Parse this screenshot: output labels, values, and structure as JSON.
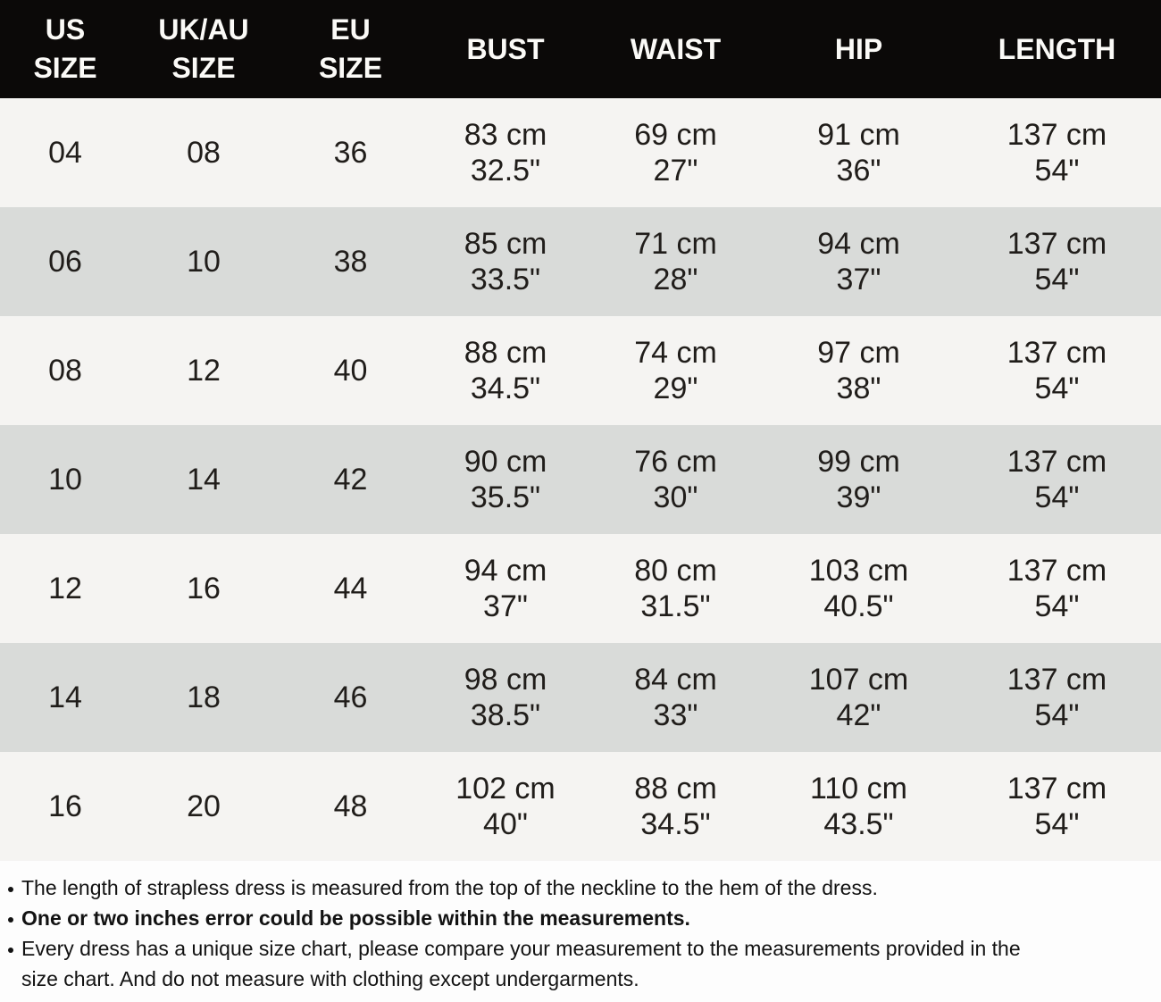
{
  "colors": {
    "header_bg": "#0b0908",
    "header_text": "#fbfaf7",
    "row_light": "#f5f4f2",
    "row_dark": "#d9dbd9",
    "table_text": "#201d1a",
    "notes_text": "#121212",
    "page_bg": "#fdfdfd"
  },
  "table": {
    "columns": [
      {
        "id": "us-size",
        "label_lines": [
          "US",
          "SIZE"
        ]
      },
      {
        "id": "uk-au-size",
        "label_lines": [
          "UK/AU",
          "SIZE"
        ]
      },
      {
        "id": "eu-size",
        "label_lines": [
          "EU",
          "SIZE"
        ]
      },
      {
        "id": "bust",
        "label_lines": [
          "BUST"
        ]
      },
      {
        "id": "waist",
        "label_lines": [
          "WAIST"
        ]
      },
      {
        "id": "hip",
        "label_lines": [
          "HIP"
        ]
      },
      {
        "id": "length",
        "label_lines": [
          "LENGTH"
        ]
      }
    ],
    "rows": [
      [
        [
          "04"
        ],
        [
          "08"
        ],
        [
          "36"
        ],
        [
          "83 cm",
          "32.5\""
        ],
        [
          "69 cm",
          "27\""
        ],
        [
          "91 cm",
          "36\""
        ],
        [
          "137 cm",
          "54\""
        ]
      ],
      [
        [
          "06"
        ],
        [
          "10"
        ],
        [
          "38"
        ],
        [
          "85 cm",
          "33.5\""
        ],
        [
          "71 cm",
          "28\""
        ],
        [
          "94 cm",
          "37\""
        ],
        [
          "137 cm",
          "54\""
        ]
      ],
      [
        [
          "08"
        ],
        [
          "12"
        ],
        [
          "40"
        ],
        [
          "88 cm",
          "34.5\""
        ],
        [
          "74 cm",
          "29\""
        ],
        [
          "97 cm",
          "38\""
        ],
        [
          "137 cm",
          "54\""
        ]
      ],
      [
        [
          "10"
        ],
        [
          "14"
        ],
        [
          "42"
        ],
        [
          "90 cm",
          "35.5\""
        ],
        [
          "76 cm",
          "30\""
        ],
        [
          "99 cm",
          "39\""
        ],
        [
          "137 cm",
          "54\""
        ]
      ],
      [
        [
          "12"
        ],
        [
          "16"
        ],
        [
          "44"
        ],
        [
          "94 cm",
          "37\""
        ],
        [
          "80 cm",
          "31.5\""
        ],
        [
          "103 cm",
          "40.5\""
        ],
        [
          "137 cm",
          "54\""
        ]
      ],
      [
        [
          "14"
        ],
        [
          "18"
        ],
        [
          "46"
        ],
        [
          "98 cm",
          "38.5\""
        ],
        [
          "84 cm",
          "33\""
        ],
        [
          "107 cm",
          "42\""
        ],
        [
          "137 cm",
          "54\""
        ]
      ],
      [
        [
          "16"
        ],
        [
          "20"
        ],
        [
          "48"
        ],
        [
          "102 cm",
          "40\""
        ],
        [
          "88 cm",
          "34.5\""
        ],
        [
          "110 cm",
          "43.5\""
        ],
        [
          "137 cm",
          "54\""
        ]
      ]
    ]
  },
  "notes": [
    {
      "bold": false,
      "lines": [
        "The length of strapless dress is measured from the top of the neckline to the hem of the dress."
      ]
    },
    {
      "bold": true,
      "lines": [
        "One or two inches error could be possible within the measurements."
      ]
    },
    {
      "bold": false,
      "lines": [
        "Every dress has a unique size chart, please compare your measurement to the measurements provided in the",
        "size chart. And do not measure with clothing except undergarments."
      ]
    }
  ]
}
